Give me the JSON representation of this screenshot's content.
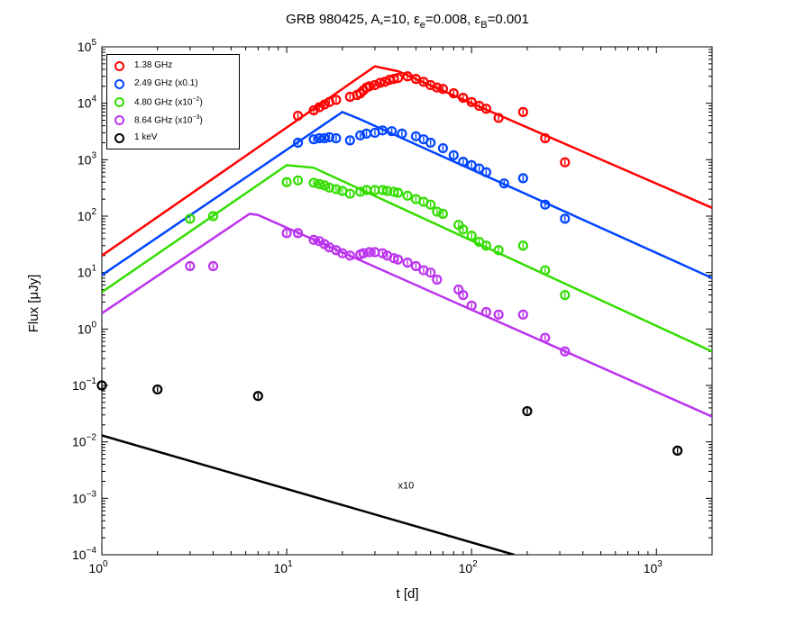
{
  "chart_data": {
    "type": "scatter",
    "title": "GRB 980425, A*=10, εe=0.008, εB=0.001",
    "title_parts": {
      "prefix": "GRB 980425, A",
      "sub1": "*",
      "mid1": "=10, ε",
      "sub2": "e",
      "mid2": "=0.008, ε",
      "sub3": "B",
      "suffix": "=0.001"
    },
    "xlabel": "t [d]",
    "ylabel": "Flux [μJy]",
    "xscale": "log",
    "yscale": "log",
    "xlim": [
      1,
      2000
    ],
    "ylim": [
      0.0001,
      100000
    ],
    "x_ticks": [
      {
        "value": 1,
        "base": "10",
        "exp": "0"
      },
      {
        "value": 10,
        "base": "10",
        "exp": "1"
      },
      {
        "value": 100,
        "base": "10",
        "exp": "2"
      },
      {
        "value": 1000,
        "base": "10",
        "exp": "3"
      }
    ],
    "y_ticks": [
      {
        "value": 0.0001,
        "base": "10",
        "exp": "−4"
      },
      {
        "value": 0.001,
        "base": "10",
        "exp": "−3"
      },
      {
        "value": 0.01,
        "base": "10",
        "exp": "−2"
      },
      {
        "value": 0.1,
        "base": "10",
        "exp": "−1"
      },
      {
        "value": 1,
        "base": "10",
        "exp": "0"
      },
      {
        "value": 10,
        "base": "10",
        "exp": "1"
      },
      {
        "value": 100,
        "base": "10",
        "exp": "2"
      },
      {
        "value": 1000,
        "base": "10",
        "exp": "3"
      },
      {
        "value": 10000,
        "base": "10",
        "exp": "4"
      },
      {
        "value": 100000,
        "base": "10",
        "exp": "5"
      }
    ],
    "annotation": "x10",
    "annotation_position": {
      "x": 40,
      "y": 0.0015
    },
    "legend_position": "top-left",
    "series": [
      {
        "name": "1.38 GHz",
        "label_parts": [
          "1.38 GHz",
          "",
          ""
        ],
        "color": "#ff0000",
        "points": [
          [
            11.5,
            6000
          ],
          [
            14,
            7500
          ],
          [
            15,
            8500
          ],
          [
            16,
            9500
          ],
          [
            17,
            10500
          ],
          [
            18.5,
            11500
          ],
          [
            22,
            13000
          ],
          [
            24,
            14000
          ],
          [
            25,
            15000
          ],
          [
            26,
            17000
          ],
          [
            27,
            19000
          ],
          [
            28,
            20000
          ],
          [
            30,
            21000
          ],
          [
            32,
            23000
          ],
          [
            34,
            24000
          ],
          [
            36,
            26000
          ],
          [
            38,
            27000
          ],
          [
            40,
            28000
          ],
          [
            45,
            30000
          ],
          [
            50,
            27000
          ],
          [
            55,
            24000
          ],
          [
            60,
            21000
          ],
          [
            65,
            19000
          ],
          [
            70,
            18000
          ],
          [
            80,
            15000
          ],
          [
            90,
            12500
          ],
          [
            100,
            10500
          ],
          [
            110,
            9000
          ],
          [
            120,
            8000
          ],
          [
            140,
            5500
          ],
          [
            190,
            7000
          ],
          [
            250,
            2400
          ],
          [
            320,
            900
          ]
        ],
        "model": [
          [
            1,
            20
          ],
          [
            30,
            45000
          ],
          [
            40,
            37000
          ],
          [
            2000,
            140
          ]
        ]
      },
      {
        "name": "2.49 GHz (x0.1)",
        "label_parts": [
          "2.49 GHz (x0.1)",
          "",
          ""
        ],
        "color": "#0044ff",
        "points": [
          [
            11.5,
            2000
          ],
          [
            14,
            2300
          ],
          [
            15,
            2400
          ],
          [
            16,
            2400
          ],
          [
            17,
            2500
          ],
          [
            18.5,
            2400
          ],
          [
            22,
            2200
          ],
          [
            25,
            2700
          ],
          [
            27,
            2900
          ],
          [
            30,
            3000
          ],
          [
            33,
            3300
          ],
          [
            37,
            3200
          ],
          [
            42,
            2900
          ],
          [
            50,
            2600
          ],
          [
            55,
            2300
          ],
          [
            60,
            2000
          ],
          [
            70,
            1600
          ],
          [
            80,
            1200
          ],
          [
            90,
            920
          ],
          [
            100,
            800
          ],
          [
            110,
            700
          ],
          [
            120,
            600
          ],
          [
            150,
            380
          ],
          [
            190,
            470
          ],
          [
            250,
            160
          ],
          [
            320,
            90
          ]
        ],
        "model": [
          [
            1,
            9
          ],
          [
            20,
            7000
          ],
          [
            25,
            5200
          ],
          [
            2000,
            8
          ]
        ]
      },
      {
        "name": "4.80 GHz (x10^-2)",
        "label_parts": [
          "4.80 GHz (x10",
          "−2",
          ")"
        ],
        "color": "#33dd00",
        "points": [
          [
            3,
            90
          ],
          [
            4,
            100
          ],
          [
            10,
            400
          ],
          [
            11.5,
            430
          ],
          [
            14,
            390
          ],
          [
            15,
            370
          ],
          [
            16,
            350
          ],
          [
            17,
            320
          ],
          [
            18.5,
            300
          ],
          [
            20,
            280
          ],
          [
            22,
            250
          ],
          [
            25,
            270
          ],
          [
            27,
            290
          ],
          [
            30,
            290
          ],
          [
            33,
            290
          ],
          [
            35,
            280
          ],
          [
            38,
            270
          ],
          [
            40,
            260
          ],
          [
            45,
            230
          ],
          [
            50,
            200
          ],
          [
            55,
            180
          ],
          [
            60,
            160
          ],
          [
            65,
            120
          ],
          [
            70,
            110
          ],
          [
            85,
            70
          ],
          [
            90,
            58
          ],
          [
            100,
            45
          ],
          [
            110,
            35
          ],
          [
            120,
            30
          ],
          [
            140,
            25
          ],
          [
            190,
            30
          ],
          [
            250,
            11
          ],
          [
            320,
            4
          ]
        ],
        "model": [
          [
            1,
            4.5
          ],
          [
            10,
            800
          ],
          [
            14,
            720
          ],
          [
            2000,
            0.4
          ]
        ]
      },
      {
        "name": "8.64 GHz (x10^-3)",
        "label_parts": [
          "8.64 GHz (x10",
          "−3",
          ")"
        ],
        "color": "#bb33ee",
        "points": [
          [
            3,
            13
          ],
          [
            4,
            13
          ],
          [
            10,
            50
          ],
          [
            11.5,
            50
          ],
          [
            14,
            38
          ],
          [
            15,
            36
          ],
          [
            16,
            32
          ],
          [
            17,
            28
          ],
          [
            18.5,
            25
          ],
          [
            20,
            22
          ],
          [
            22,
            20
          ],
          [
            25,
            21
          ],
          [
            26,
            22
          ],
          [
            28,
            23
          ],
          [
            30,
            23
          ],
          [
            33,
            22
          ],
          [
            35,
            20
          ],
          [
            38,
            18
          ],
          [
            40,
            17
          ],
          [
            45,
            15
          ],
          [
            50,
            13
          ],
          [
            55,
            11
          ],
          [
            60,
            10
          ],
          [
            65,
            7.5
          ],
          [
            85,
            5
          ],
          [
            90,
            4
          ],
          [
            100,
            2.6
          ],
          [
            120,
            2
          ],
          [
            140,
            1.8
          ],
          [
            190,
            1.8
          ],
          [
            250,
            0.7
          ],
          [
            320,
            0.4
          ]
        ],
        "model": [
          [
            1,
            1.9
          ],
          [
            6.3,
            110
          ],
          [
            7,
            105
          ],
          [
            2000,
            0.028
          ]
        ]
      },
      {
        "name": "1 keV",
        "label_parts": [
          "1 keV",
          "",
          ""
        ],
        "color": "#000000",
        "points": [
          [
            1,
            0.1
          ],
          [
            2,
            0.085
          ],
          [
            7,
            0.065
          ],
          [
            200,
            0.035
          ],
          [
            1300,
            0.007
          ]
        ],
        "model": [
          [
            1,
            0.013
          ],
          [
            170,
            0.0001
          ]
        ]
      }
    ]
  }
}
